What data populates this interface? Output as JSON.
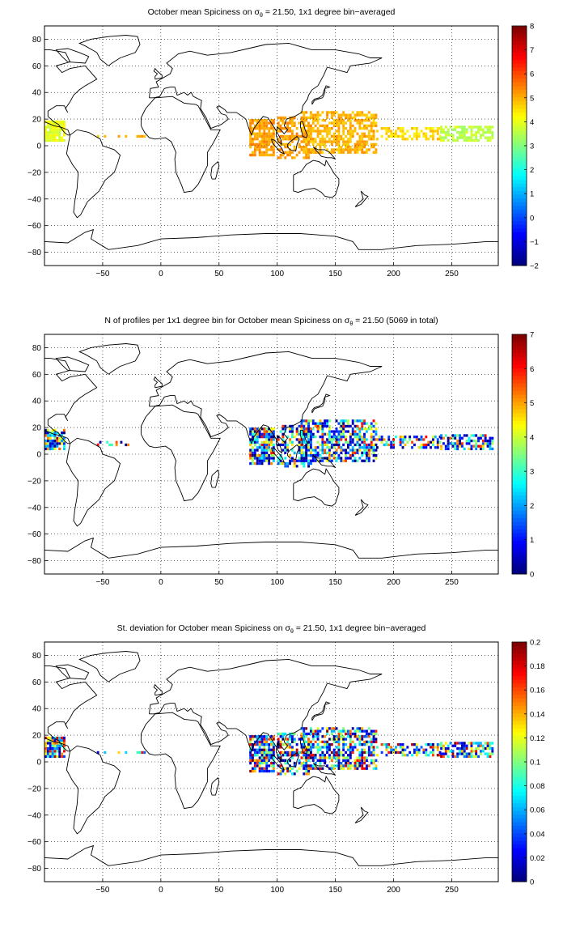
{
  "panels": [
    {
      "id": "mean",
      "title_pre": "October mean Spiciness on ",
      "title_sigma": "σ",
      "title_sub": "θ",
      "title_post": " = 21.50, 1x1 degree bin−averaged",
      "colorbar_ticks": [
        "8",
        "7",
        "6",
        "5",
        "4",
        "3",
        "2",
        "1",
        "0",
        "−1",
        "−2"
      ],
      "colorbar_range": [
        -2,
        8
      ]
    },
    {
      "id": "count",
      "title_pre": "N of profiles per 1x1 degree bin for October mean Spiciness on ",
      "title_sigma": "σ",
      "title_sub": "θ",
      "title_post": " = 21.50 (5069 in total)",
      "colorbar_ticks": [
        "7",
        "6",
        "5",
        "4",
        "3",
        "2",
        "1",
        "0"
      ],
      "colorbar_range": [
        0,
        7
      ]
    },
    {
      "id": "std",
      "title_pre": "St. deviation for October mean Spiciness on ",
      "title_sigma": "σ",
      "title_sub": "θ",
      "title_post": " = 21.50, 1x1 degree bin−averaged",
      "colorbar_ticks": [
        "0.2",
        "0.18",
        "0.16",
        "0.14",
        "0.12",
        "0.1",
        "0.08",
        "0.06",
        "0.04",
        "0.02",
        "0"
      ],
      "colorbar_range": [
        0,
        0.2
      ]
    }
  ],
  "axes": {
    "x_ticks": [
      "−50",
      "0",
      "50",
      "100",
      "150",
      "200",
      "250"
    ],
    "x_values": [
      -50,
      0,
      50,
      100,
      150,
      200,
      250
    ],
    "x_range": [
      -100,
      290
    ],
    "y_ticks": [
      "80",
      "60",
      "40",
      "20",
      "0",
      "−20",
      "−40",
      "−60",
      "−80"
    ],
    "y_values": [
      80,
      60,
      40,
      20,
      0,
      -20,
      -40,
      -60,
      -80
    ],
    "y_range": [
      -90,
      90
    ],
    "grid": "dotted"
  },
  "chart_data": [
    {
      "type": "heatmap",
      "title": "October mean Spiciness on σθ = 21.50, 1x1 degree bin−averaged",
      "xlim": [
        -100,
        290
      ],
      "ylim": [
        -90,
        90
      ],
      "colorbar": {
        "min": -2,
        "max": 8
      },
      "regions": [
        {
          "x": [
            -100,
            -83
          ],
          "y": [
            3,
            18
          ],
          "value": 4.0
        },
        {
          "x": [
            -55,
            -12
          ],
          "y": [
            6,
            10
          ],
          "value": 5.0
        },
        {
          "x": [
            75,
            100
          ],
          "y": [
            -8,
            20
          ],
          "value": 5.2
        },
        {
          "x": [
            100,
            185
          ],
          "y": [
            -10,
            25
          ],
          "value": 5.0
        },
        {
          "x": [
            185,
            240
          ],
          "y": [
            4,
            14
          ],
          "value": 4.5
        },
        {
          "x": [
            240,
            285
          ],
          "y": [
            4,
            14
          ],
          "value": 3.8
        }
      ]
    },
    {
      "type": "heatmap",
      "title": "N of profiles per 1x1 degree bin for October mean Spiciness on σθ = 21.50 (5069 in total)",
      "xlim": [
        -100,
        290
      ],
      "ylim": [
        -90,
        90
      ],
      "colorbar": {
        "min": 0,
        "max": 7
      },
      "total": 5069
    },
    {
      "type": "heatmap",
      "title": "St. deviation for October mean Spiciness on σθ = 21.50, 1x1 degree bin−averaged",
      "xlim": [
        -100,
        290
      ],
      "ylim": [
        -90,
        90
      ],
      "colorbar": {
        "min": 0,
        "max": 0.2
      }
    }
  ]
}
